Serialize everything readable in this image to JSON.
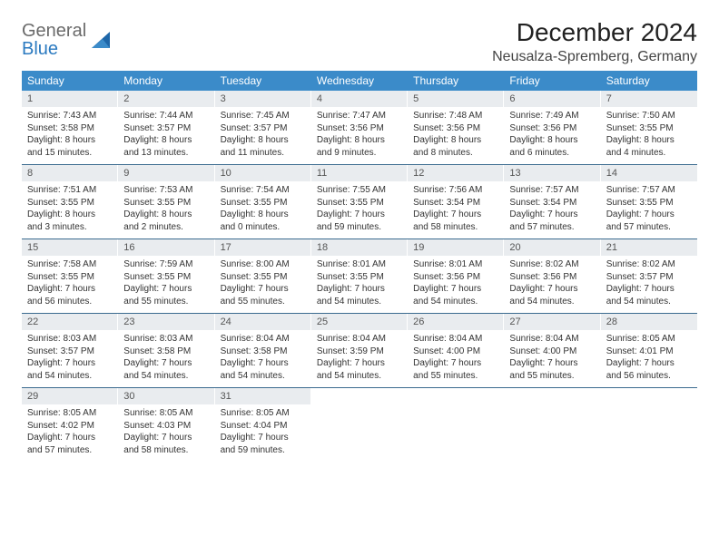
{
  "logo": {
    "word1": "General",
    "word2": "Blue"
  },
  "title": "December 2024",
  "location": "Neusalza-Spremberg, Germany",
  "colors": {
    "header_bg": "#3b8bc9",
    "header_text": "#ffffff",
    "daynum_bg": "#e9ecef",
    "daynum_text": "#555555",
    "body_text": "#333333",
    "week_divider": "#3b6b8f",
    "logo_gray": "#6a6a6a",
    "logo_blue": "#2b7ac0"
  },
  "weekdays": [
    "Sunday",
    "Monday",
    "Tuesday",
    "Wednesday",
    "Thursday",
    "Friday",
    "Saturday"
  ],
  "weeks": [
    [
      {
        "n": "1",
        "sr": "Sunrise: 7:43 AM",
        "ss": "Sunset: 3:58 PM",
        "dl": "Daylight: 8 hours and 15 minutes."
      },
      {
        "n": "2",
        "sr": "Sunrise: 7:44 AM",
        "ss": "Sunset: 3:57 PM",
        "dl": "Daylight: 8 hours and 13 minutes."
      },
      {
        "n": "3",
        "sr": "Sunrise: 7:45 AM",
        "ss": "Sunset: 3:57 PM",
        "dl": "Daylight: 8 hours and 11 minutes."
      },
      {
        "n": "4",
        "sr": "Sunrise: 7:47 AM",
        "ss": "Sunset: 3:56 PM",
        "dl": "Daylight: 8 hours and 9 minutes."
      },
      {
        "n": "5",
        "sr": "Sunrise: 7:48 AM",
        "ss": "Sunset: 3:56 PM",
        "dl": "Daylight: 8 hours and 8 minutes."
      },
      {
        "n": "6",
        "sr": "Sunrise: 7:49 AM",
        "ss": "Sunset: 3:56 PM",
        "dl": "Daylight: 8 hours and 6 minutes."
      },
      {
        "n": "7",
        "sr": "Sunrise: 7:50 AM",
        "ss": "Sunset: 3:55 PM",
        "dl": "Daylight: 8 hours and 4 minutes."
      }
    ],
    [
      {
        "n": "8",
        "sr": "Sunrise: 7:51 AM",
        "ss": "Sunset: 3:55 PM",
        "dl": "Daylight: 8 hours and 3 minutes."
      },
      {
        "n": "9",
        "sr": "Sunrise: 7:53 AM",
        "ss": "Sunset: 3:55 PM",
        "dl": "Daylight: 8 hours and 2 minutes."
      },
      {
        "n": "10",
        "sr": "Sunrise: 7:54 AM",
        "ss": "Sunset: 3:55 PM",
        "dl": "Daylight: 8 hours and 0 minutes."
      },
      {
        "n": "11",
        "sr": "Sunrise: 7:55 AM",
        "ss": "Sunset: 3:55 PM",
        "dl": "Daylight: 7 hours and 59 minutes."
      },
      {
        "n": "12",
        "sr": "Sunrise: 7:56 AM",
        "ss": "Sunset: 3:54 PM",
        "dl": "Daylight: 7 hours and 58 minutes."
      },
      {
        "n": "13",
        "sr": "Sunrise: 7:57 AM",
        "ss": "Sunset: 3:54 PM",
        "dl": "Daylight: 7 hours and 57 minutes."
      },
      {
        "n": "14",
        "sr": "Sunrise: 7:57 AM",
        "ss": "Sunset: 3:55 PM",
        "dl": "Daylight: 7 hours and 57 minutes."
      }
    ],
    [
      {
        "n": "15",
        "sr": "Sunrise: 7:58 AM",
        "ss": "Sunset: 3:55 PM",
        "dl": "Daylight: 7 hours and 56 minutes."
      },
      {
        "n": "16",
        "sr": "Sunrise: 7:59 AM",
        "ss": "Sunset: 3:55 PM",
        "dl": "Daylight: 7 hours and 55 minutes."
      },
      {
        "n": "17",
        "sr": "Sunrise: 8:00 AM",
        "ss": "Sunset: 3:55 PM",
        "dl": "Daylight: 7 hours and 55 minutes."
      },
      {
        "n": "18",
        "sr": "Sunrise: 8:01 AM",
        "ss": "Sunset: 3:55 PM",
        "dl": "Daylight: 7 hours and 54 minutes."
      },
      {
        "n": "19",
        "sr": "Sunrise: 8:01 AM",
        "ss": "Sunset: 3:56 PM",
        "dl": "Daylight: 7 hours and 54 minutes."
      },
      {
        "n": "20",
        "sr": "Sunrise: 8:02 AM",
        "ss": "Sunset: 3:56 PM",
        "dl": "Daylight: 7 hours and 54 minutes."
      },
      {
        "n": "21",
        "sr": "Sunrise: 8:02 AM",
        "ss": "Sunset: 3:57 PM",
        "dl": "Daylight: 7 hours and 54 minutes."
      }
    ],
    [
      {
        "n": "22",
        "sr": "Sunrise: 8:03 AM",
        "ss": "Sunset: 3:57 PM",
        "dl": "Daylight: 7 hours and 54 minutes."
      },
      {
        "n": "23",
        "sr": "Sunrise: 8:03 AM",
        "ss": "Sunset: 3:58 PM",
        "dl": "Daylight: 7 hours and 54 minutes."
      },
      {
        "n": "24",
        "sr": "Sunrise: 8:04 AM",
        "ss": "Sunset: 3:58 PM",
        "dl": "Daylight: 7 hours and 54 minutes."
      },
      {
        "n": "25",
        "sr": "Sunrise: 8:04 AM",
        "ss": "Sunset: 3:59 PM",
        "dl": "Daylight: 7 hours and 54 minutes."
      },
      {
        "n": "26",
        "sr": "Sunrise: 8:04 AM",
        "ss": "Sunset: 4:00 PM",
        "dl": "Daylight: 7 hours and 55 minutes."
      },
      {
        "n": "27",
        "sr": "Sunrise: 8:04 AM",
        "ss": "Sunset: 4:00 PM",
        "dl": "Daylight: 7 hours and 55 minutes."
      },
      {
        "n": "28",
        "sr": "Sunrise: 8:05 AM",
        "ss": "Sunset: 4:01 PM",
        "dl": "Daylight: 7 hours and 56 minutes."
      }
    ],
    [
      {
        "n": "29",
        "sr": "Sunrise: 8:05 AM",
        "ss": "Sunset: 4:02 PM",
        "dl": "Daylight: 7 hours and 57 minutes."
      },
      {
        "n": "30",
        "sr": "Sunrise: 8:05 AM",
        "ss": "Sunset: 4:03 PM",
        "dl": "Daylight: 7 hours and 58 minutes."
      },
      {
        "n": "31",
        "sr": "Sunrise: 8:05 AM",
        "ss": "Sunset: 4:04 PM",
        "dl": "Daylight: 7 hours and 59 minutes."
      },
      null,
      null,
      null,
      null
    ]
  ]
}
